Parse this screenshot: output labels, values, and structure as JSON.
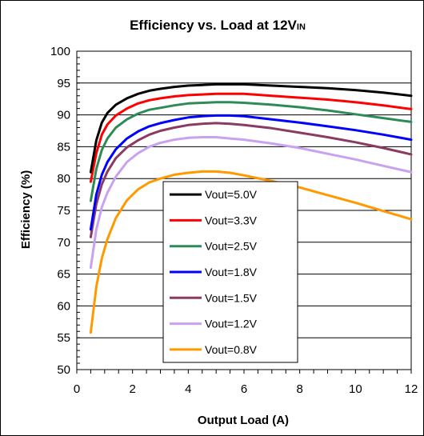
{
  "chart_data": {
    "type": "line",
    "title": "Efficiency vs. Load at 12V",
    "title_subscript": "IN",
    "xlabel": "Output Load (A)",
    "ylabel": "Efficiency (%)",
    "xlim": [
      0,
      12
    ],
    "ylim": [
      50,
      100
    ],
    "x_ticks": [
      "0",
      "2",
      "4",
      "6",
      "8",
      "10",
      "12"
    ],
    "y_ticks": [
      "50",
      "55",
      "60",
      "65",
      "70",
      "75",
      "80",
      "85",
      "90",
      "95",
      "100"
    ],
    "grid": "horizontal",
    "legend_position": "lower-center",
    "series": [
      {
        "name": "Vout=5.0V",
        "color": "#000000",
        "x": [
          0.5,
          0.7,
          0.9,
          1.1,
          1.4,
          1.8,
          2.2,
          2.6,
          3.0,
          3.5,
          4.0,
          4.5,
          5.0,
          5.5,
          6.0,
          7.0,
          8.0,
          9.0,
          10.0,
          11.0,
          12.0
        ],
        "y": [
          81.0,
          86.0,
          88.8,
          90.3,
          91.6,
          92.6,
          93.3,
          93.8,
          94.1,
          94.4,
          94.6,
          94.7,
          94.8,
          94.8,
          94.8,
          94.6,
          94.4,
          94.2,
          93.9,
          93.5,
          93.0
        ]
      },
      {
        "name": "Vout=3.3V",
        "color": "#ff0000",
        "x": [
          0.5,
          0.7,
          0.9,
          1.1,
          1.4,
          1.8,
          2.2,
          2.6,
          3.0,
          3.5,
          4.0,
          4.5,
          5.0,
          5.5,
          6.0,
          7.0,
          8.0,
          9.0,
          10.0,
          11.0,
          12.0
        ],
        "y": [
          79.5,
          84.0,
          86.9,
          88.5,
          89.9,
          91.0,
          91.8,
          92.3,
          92.6,
          92.9,
          93.1,
          93.2,
          93.3,
          93.3,
          93.3,
          93.0,
          92.7,
          92.4,
          92.0,
          91.5,
          90.9
        ]
      },
      {
        "name": "Vout=2.5V",
        "color": "#2e8b57",
        "x": [
          0.5,
          0.7,
          0.9,
          1.1,
          1.4,
          1.8,
          2.2,
          2.6,
          3.0,
          3.5,
          4.0,
          4.5,
          5.0,
          5.5,
          6.0,
          7.0,
          8.0,
          9.0,
          10.0,
          11.0,
          12.0
        ],
        "y": [
          76.5,
          81.5,
          84.5,
          86.3,
          88.0,
          89.3,
          90.2,
          90.8,
          91.1,
          91.5,
          91.8,
          91.9,
          92.0,
          92.0,
          91.9,
          91.6,
          91.2,
          90.7,
          90.1,
          89.5,
          88.9
        ]
      },
      {
        "name": "Vout=1.8V",
        "color": "#0000ff",
        "x": [
          0.5,
          0.7,
          0.9,
          1.1,
          1.4,
          1.8,
          2.2,
          2.6,
          3.0,
          3.5,
          4.0,
          4.5,
          5.0,
          5.5,
          6.0,
          7.0,
          8.0,
          9.0,
          10.0,
          11.0,
          12.0
        ],
        "y": [
          72.0,
          77.5,
          80.6,
          82.6,
          84.6,
          86.3,
          87.4,
          88.2,
          88.7,
          89.2,
          89.6,
          89.8,
          89.9,
          89.9,
          89.8,
          89.3,
          88.8,
          88.2,
          87.6,
          86.9,
          86.1
        ]
      },
      {
        "name": "Vout=1.5V",
        "color": "#8b3a62",
        "x": [
          0.5,
          0.7,
          0.9,
          1.1,
          1.4,
          1.8,
          2.2,
          2.6,
          3.0,
          3.5,
          4.0,
          4.5,
          5.0,
          5.5,
          6.0,
          7.0,
          8.0,
          9.0,
          10.0,
          11.0,
          12.0
        ],
        "y": [
          70.8,
          76.0,
          79.1,
          81.1,
          83.2,
          84.9,
          86.0,
          86.9,
          87.5,
          88.0,
          88.4,
          88.6,
          88.7,
          88.6,
          88.4,
          87.9,
          87.2,
          86.5,
          85.7,
          84.8,
          83.8
        ]
      },
      {
        "name": "Vout=1.2V",
        "color": "#c8a2f0",
        "x": [
          0.5,
          0.7,
          0.9,
          1.1,
          1.4,
          1.8,
          2.2,
          2.6,
          3.0,
          3.5,
          4.0,
          4.5,
          5.0,
          5.5,
          6.0,
          7.0,
          8.0,
          9.0,
          10.0,
          11.0,
          12.0
        ],
        "y": [
          66.0,
          72.0,
          75.5,
          77.8,
          80.3,
          82.6,
          84.0,
          85.0,
          85.6,
          86.1,
          86.4,
          86.5,
          86.5,
          86.3,
          86.1,
          85.5,
          84.8,
          83.9,
          83.0,
          82.0,
          81.0
        ]
      },
      {
        "name": "Vout=0.8V",
        "color": "#ff9900",
        "x": [
          0.5,
          0.7,
          0.9,
          1.1,
          1.4,
          1.8,
          2.2,
          2.6,
          3.0,
          3.5,
          4.0,
          4.5,
          5.0,
          5.5,
          6.0,
          7.0,
          8.0,
          9.0,
          10.0,
          11.0,
          12.0
        ],
        "y": [
          55.8,
          63.0,
          67.5,
          70.5,
          73.8,
          76.6,
          78.3,
          79.4,
          80.0,
          80.6,
          80.9,
          81.1,
          81.1,
          80.9,
          80.5,
          79.6,
          78.6,
          77.4,
          76.2,
          74.9,
          73.6
        ]
      }
    ]
  }
}
